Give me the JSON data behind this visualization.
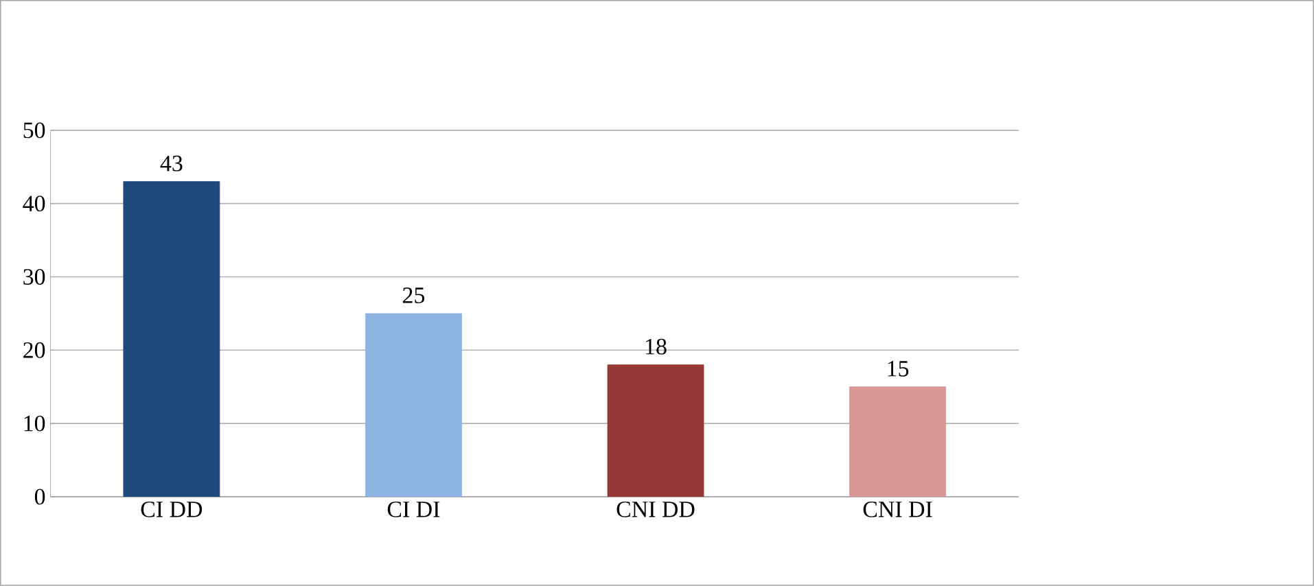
{
  "chart_data": {
    "type": "bar",
    "categories": [
      "CI DD",
      "CI DI",
      "CNI DD",
      "CNI DI"
    ],
    "values": [
      43,
      25,
      18,
      15
    ],
    "colors": [
      "#1f497d",
      "#8db3e2",
      "#953735",
      "#d99694"
    ],
    "ylim": [
      0,
      50
    ],
    "yticks": [
      0,
      10,
      20,
      30,
      40,
      50
    ],
    "grid": "y",
    "data_labels": true
  }
}
